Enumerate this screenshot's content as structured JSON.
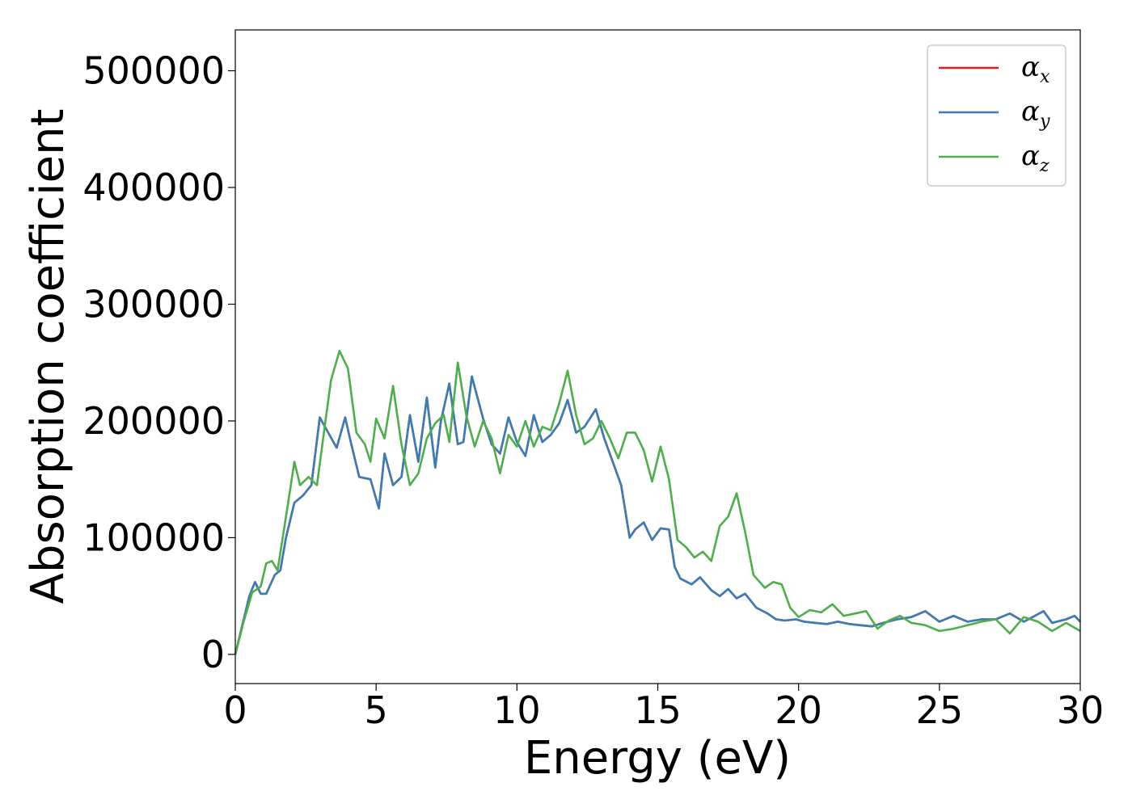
{
  "chart_data": {
    "type": "line",
    "title": "",
    "xlabel": "Energy (eV)",
    "ylabel": "Absorption coefficient",
    "xlim": [
      0,
      30
    ],
    "ylim": [
      -25000,
      535000
    ],
    "xticks": [
      0,
      5,
      10,
      15,
      20,
      25,
      30
    ],
    "xtick_labels": [
      "0",
      "5",
      "10",
      "15",
      "20",
      "25",
      "30"
    ],
    "yticks": [
      0,
      100000,
      200000,
      300000,
      400000,
      500000
    ],
    "ytick_labels": [
      "0",
      "100000",
      "200000",
      "300000",
      "400000",
      "500000"
    ],
    "grid": false,
    "legend_position": "top-right",
    "series": [
      {
        "name": "α",
        "subscript": "x",
        "color": "#e41a1c",
        "x": [
          0,
          0.3,
          0.5,
          0.7,
          0.9,
          1.1,
          1.4,
          1.6,
          1.8,
          2.1,
          2.4,
          2.7,
          3.0,
          3.3,
          3.6,
          3.9,
          4.1,
          4.4,
          4.8,
          5.1,
          5.3,
          5.6,
          5.9,
          6.2,
          6.5,
          6.8,
          7.1,
          7.3,
          7.6,
          7.9,
          8.1,
          8.4,
          8.8,
          9.1,
          9.4,
          9.7,
          10.0,
          10.3,
          10.6,
          10.9,
          11.2,
          11.5,
          11.8,
          12.1,
          12.4,
          12.8,
          13.1,
          13.4,
          13.7,
          14.0,
          14.2,
          14.5,
          14.8,
          15.1,
          15.4,
          15.6,
          15.8,
          16.2,
          16.5,
          16.9,
          17.2,
          17.5,
          17.8,
          18.1,
          18.5,
          18.9,
          19.2,
          19.5,
          19.9,
          20.2,
          20.6,
          21.0,
          21.4,
          21.8,
          22.2,
          22.6,
          23.0,
          23.5,
          24.0,
          24.5,
          25.0,
          25.5,
          26.0,
          26.5,
          27.0,
          27.5,
          28.0,
          28.7,
          29.0,
          29.5,
          29.8,
          30.0
        ],
        "values": [
          0,
          30000,
          50000,
          62000,
          52000,
          52000,
          68000,
          72000,
          100000,
          130000,
          136000,
          145000,
          203000,
          190000,
          177000,
          203000,
          182000,
          152000,
          150000,
          125000,
          172000,
          145000,
          152000,
          205000,
          165000,
          220000,
          160000,
          200000,
          232000,
          180000,
          182000,
          238000,
          202000,
          180000,
          172000,
          203000,
          182000,
          170000,
          205000,
          182000,
          188000,
          198000,
          218000,
          190000,
          195000,
          210000,
          185000,
          165000,
          145000,
          100000,
          107000,
          113000,
          98000,
          108000,
          107000,
          75000,
          65000,
          60000,
          66000,
          55000,
          50000,
          56000,
          48000,
          52000,
          40000,
          35000,
          30000,
          29000,
          30000,
          28000,
          27000,
          26000,
          28000,
          26000,
          25000,
          24000,
          27000,
          30000,
          32000,
          37000,
          28000,
          33000,
          28000,
          30000,
          30000,
          35000,
          28000,
          37000,
          27000,
          30000,
          33000,
          28000
        ]
      },
      {
        "name": "α",
        "subscript": "y",
        "color": "#377eb8",
        "x": [
          0,
          0.3,
          0.5,
          0.7,
          0.9,
          1.1,
          1.4,
          1.6,
          1.8,
          2.1,
          2.4,
          2.7,
          3.0,
          3.3,
          3.6,
          3.9,
          4.1,
          4.4,
          4.8,
          5.1,
          5.3,
          5.6,
          5.9,
          6.2,
          6.5,
          6.8,
          7.1,
          7.3,
          7.6,
          7.9,
          8.1,
          8.4,
          8.8,
          9.1,
          9.4,
          9.7,
          10.0,
          10.3,
          10.6,
          10.9,
          11.2,
          11.5,
          11.8,
          12.1,
          12.4,
          12.8,
          13.1,
          13.4,
          13.7,
          14.0,
          14.2,
          14.5,
          14.8,
          15.1,
          15.4,
          15.6,
          15.8,
          16.2,
          16.5,
          16.9,
          17.2,
          17.5,
          17.8,
          18.1,
          18.5,
          18.9,
          19.2,
          19.5,
          19.9,
          20.2,
          20.6,
          21.0,
          21.4,
          21.8,
          22.2,
          22.6,
          23.0,
          23.5,
          24.0,
          24.5,
          25.0,
          25.5,
          26.0,
          26.5,
          27.0,
          27.5,
          28.0,
          28.7,
          29.0,
          29.5,
          29.8,
          30.0
        ],
        "values": [
          0,
          30000,
          50000,
          62000,
          52000,
          52000,
          68000,
          72000,
          100000,
          130000,
          136000,
          145000,
          203000,
          190000,
          177000,
          203000,
          182000,
          152000,
          150000,
          125000,
          172000,
          145000,
          152000,
          205000,
          165000,
          220000,
          160000,
          200000,
          232000,
          180000,
          182000,
          238000,
          202000,
          180000,
          172000,
          203000,
          182000,
          170000,
          205000,
          182000,
          188000,
          198000,
          218000,
          190000,
          195000,
          210000,
          185000,
          165000,
          145000,
          100000,
          107000,
          113000,
          98000,
          108000,
          107000,
          75000,
          65000,
          60000,
          66000,
          55000,
          50000,
          56000,
          48000,
          52000,
          40000,
          35000,
          30000,
          29000,
          30000,
          28000,
          27000,
          26000,
          28000,
          26000,
          25000,
          24000,
          27000,
          30000,
          32000,
          37000,
          28000,
          33000,
          28000,
          30000,
          30000,
          35000,
          28000,
          37000,
          27000,
          30000,
          33000,
          28000
        ]
      },
      {
        "name": "α",
        "subscript": "z",
        "color": "#4daf4a",
        "x": [
          0,
          0.3,
          0.6,
          0.9,
          1.1,
          1.3,
          1.5,
          1.8,
          2.1,
          2.3,
          2.6,
          2.9,
          3.2,
          3.4,
          3.7,
          4.0,
          4.3,
          4.6,
          4.8,
          5.0,
          5.3,
          5.6,
          5.9,
          6.2,
          6.5,
          6.8,
          7.1,
          7.4,
          7.6,
          7.9,
          8.2,
          8.5,
          8.8,
          9.1,
          9.4,
          9.7,
          10.0,
          10.3,
          10.6,
          10.9,
          11.2,
          11.5,
          11.8,
          12.1,
          12.4,
          12.7,
          13.0,
          13.3,
          13.6,
          13.9,
          14.2,
          14.5,
          14.8,
          15.1,
          15.4,
          15.7,
          16.0,
          16.3,
          16.6,
          16.9,
          17.2,
          17.5,
          17.8,
          18.1,
          18.4,
          18.8,
          19.1,
          19.4,
          19.7,
          20.0,
          20.4,
          20.8,
          21.2,
          21.6,
          22.0,
          22.4,
          22.8,
          23.2,
          23.6,
          24.0,
          24.5,
          25.0,
          25.5,
          26.0,
          26.5,
          27.0,
          27.5,
          28.0,
          28.5,
          29.0,
          29.5,
          30.0
        ],
        "values": [
          0,
          28000,
          53000,
          58000,
          78000,
          80000,
          72000,
          118000,
          165000,
          145000,
          152000,
          145000,
          200000,
          235000,
          260000,
          245000,
          190000,
          180000,
          165000,
          202000,
          185000,
          230000,
          180000,
          145000,
          155000,
          185000,
          198000,
          205000,
          182000,
          250000,
          205000,
          178000,
          200000,
          185000,
          155000,
          188000,
          178000,
          200000,
          178000,
          195000,
          192000,
          215000,
          243000,
          205000,
          180000,
          185000,
          200000,
          185000,
          168000,
          190000,
          190000,
          175000,
          148000,
          178000,
          150000,
          98000,
          92000,
          83000,
          88000,
          80000,
          110000,
          118000,
          138000,
          105000,
          68000,
          57000,
          62000,
          60000,
          40000,
          32000,
          38000,
          36000,
          43000,
          33000,
          35000,
          37000,
          22000,
          29000,
          33000,
          27000,
          25000,
          20000,
          22000,
          25000,
          28000,
          30000,
          18000,
          32000,
          28000,
          20000,
          27000,
          20000
        ]
      }
    ]
  }
}
